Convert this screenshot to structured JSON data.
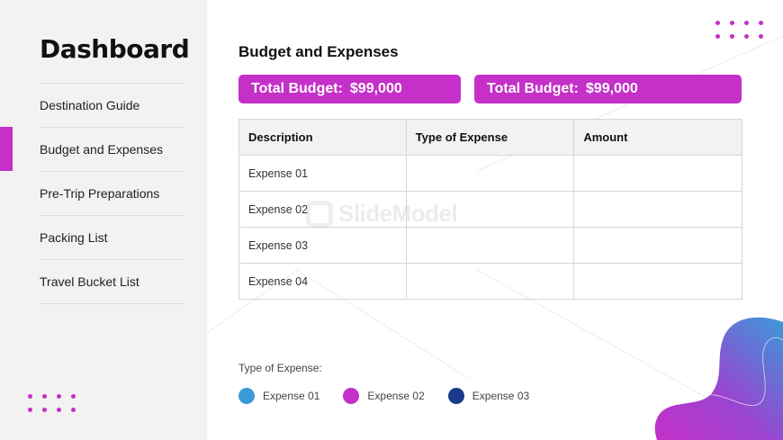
{
  "sidebar": {
    "title": "Dashboard",
    "items": [
      {
        "label": "Destination Guide"
      },
      {
        "label": "Budget and Expenses"
      },
      {
        "label": "Pre-Trip Preparations"
      },
      {
        "label": "Packing List"
      },
      {
        "label": "Travel Bucket List"
      }
    ],
    "active_index": 1
  },
  "main": {
    "title": "Budget and Expenses",
    "budgets": [
      {
        "label": "Total Budget:",
        "amount": "$99,000"
      },
      {
        "label": "Total Budget:",
        "amount": "$99,000"
      }
    ],
    "table": {
      "headers": [
        "Description",
        "Type of Expense",
        "Amount"
      ],
      "rows": [
        [
          "Expense 01",
          "",
          ""
        ],
        [
          "Expense 02",
          "",
          ""
        ],
        [
          "Expense 03",
          "",
          ""
        ],
        [
          "Expense 04",
          "",
          ""
        ]
      ]
    },
    "legend": {
      "title": "Type of Expense:",
      "items": [
        {
          "label": "Expense 01",
          "color": "#3a9ad9"
        },
        {
          "label": "Expense 02",
          "color": "#c430c8"
        },
        {
          "label": "Expense 03",
          "color": "#1a3a8a"
        }
      ]
    }
  },
  "watermark": {
    "text": "SlideModel"
  },
  "colors": {
    "accent": "#c430c8",
    "sidebar_bg": "#f2f2f2"
  }
}
